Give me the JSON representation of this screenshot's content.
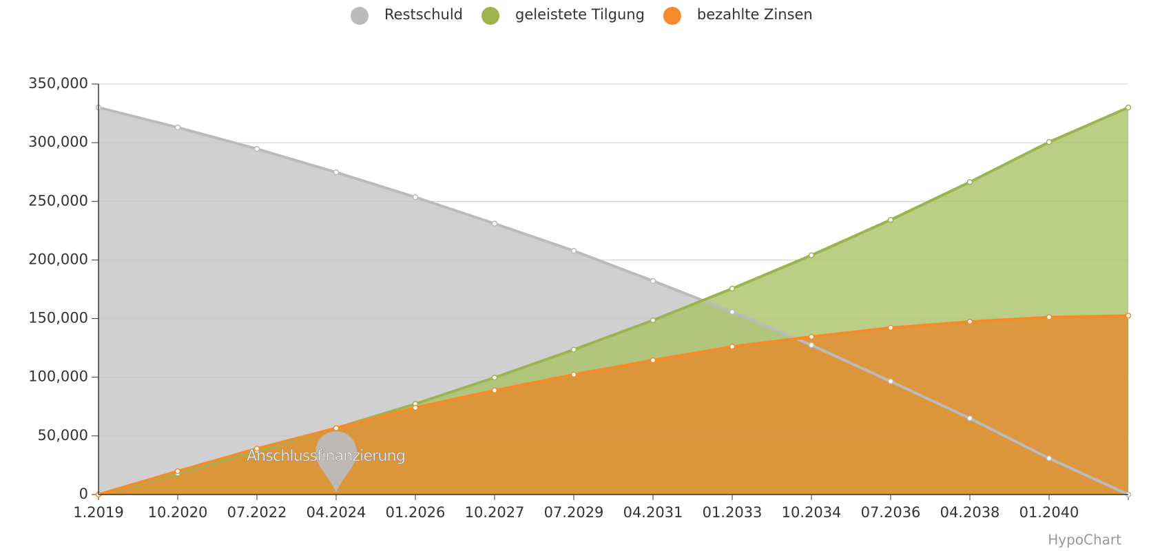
{
  "chart_data": {
    "type": "area",
    "categories": [
      "1.2019",
      "10.2020",
      "07.2022",
      "04.2024",
      "01.2026",
      "10.2027",
      "07.2029",
      "04.2031",
      "01.2033",
      "10.2034",
      "07.2036",
      "04.2038",
      "01.2040",
      null
    ],
    "series": [
      {
        "name": "Restschuld",
        "color": "#bbbbbb",
        "fill": "#c4c4c4",
        "values": [
          330000,
          313000,
          294700,
          274700,
          253500,
          231000,
          207800,
          182100,
          155700,
          127400,
          96500,
          65000,
          30900,
          0
        ]
      },
      {
        "name": "geleistete Tilgung",
        "color": "#9db350",
        "fill": "#a9c268",
        "values": [
          0,
          18000,
          37300,
          56600,
          77200,
          99700,
          123500,
          148600,
          175600,
          204000,
          234200,
          266400,
          300500,
          330000
        ]
      },
      {
        "name": "bezahlte Zinsen",
        "color": "#f68a2b",
        "fill": "#e68a2c",
        "values": [
          0,
          19900,
          39200,
          56600,
          74000,
          88800,
          102300,
          114500,
          126100,
          134500,
          142200,
          147300,
          151200,
          152500
        ]
      }
    ],
    "ylim": [
      0,
      350000
    ],
    "yticks": [
      0,
      {
        "value": 50000,
        "label": "50,000"
      },
      {
        "value": 100000,
        "label": "100,000"
      },
      {
        "value": 150000,
        "label": "150,000"
      },
      {
        "value": 200000,
        "label": "200,000"
      },
      {
        "value": 250000,
        "label": "250,000"
      },
      {
        "value": 300000,
        "label": "300,000"
      },
      {
        "value": 350000,
        "label": "350,000"
      }
    ],
    "grid": true,
    "legend": "top",
    "annotations": [
      {
        "text": "Anschlussfinanzierung",
        "x": "04.2024"
      }
    ],
    "credit": "HypoChart"
  }
}
